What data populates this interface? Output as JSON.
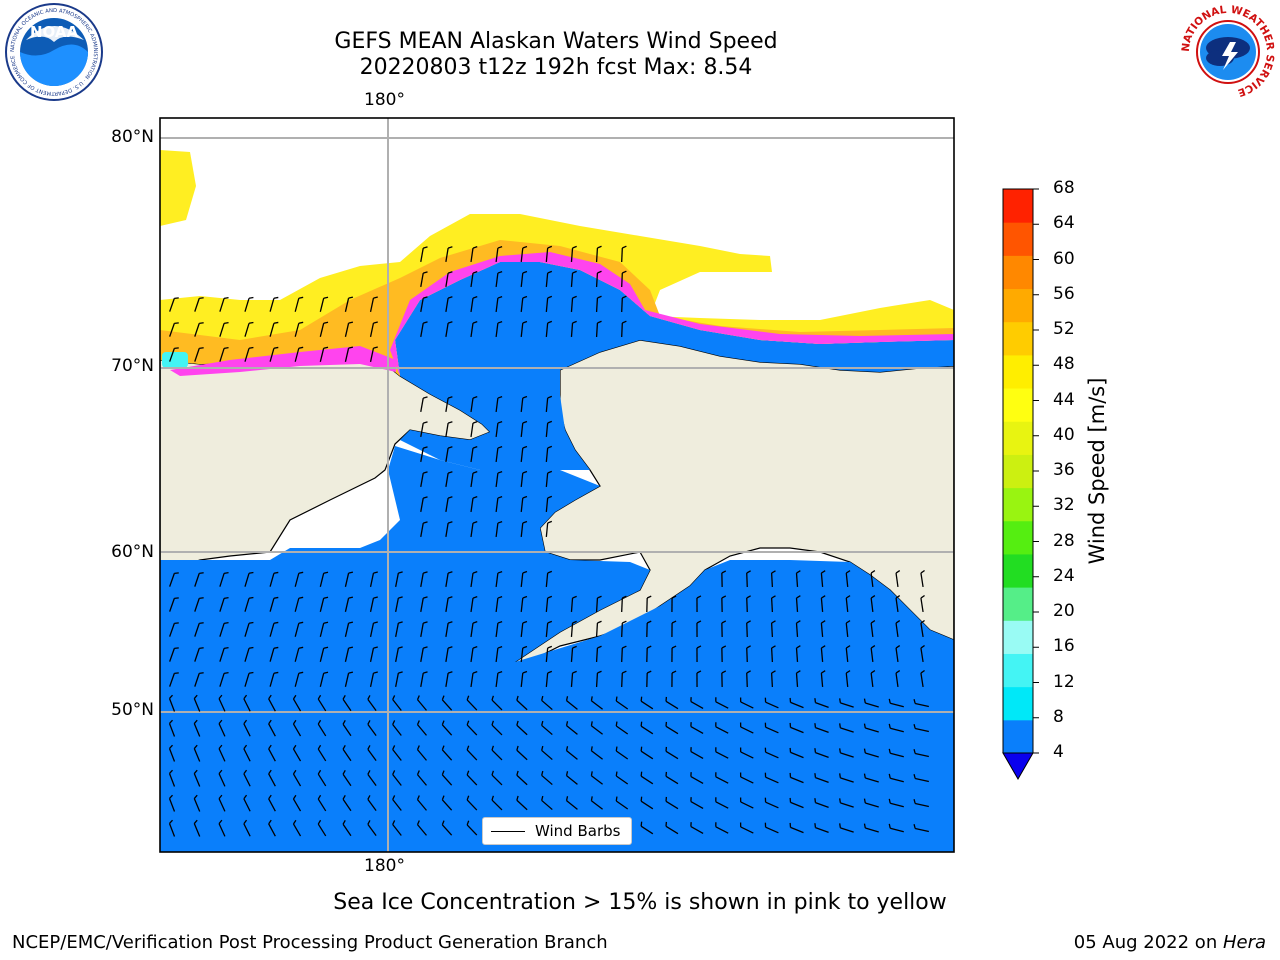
{
  "header": {
    "title_line1": "GEFS MEAN Alaskan Waters Wind Speed",
    "title_line2": "20220803 t12z 192h fcst   Max: 8.54"
  },
  "map": {
    "lon_label_top": "180°",
    "lon_label_bottom": "180°",
    "lat_labels": [
      "80°N",
      "70°N",
      "60°N",
      "50°N"
    ],
    "ocean_color": "#0a7ffb",
    "land_color": "#efeddd",
    "ice_colors": [
      "#ff44ee",
      "#ffbb22",
      "#ffee22"
    ],
    "legend_label": "Wind Barbs"
  },
  "colorbar": {
    "label": "Wind Speed [m/s]",
    "ticks": [
      "68",
      "64",
      "60",
      "56",
      "52",
      "48",
      "44",
      "40",
      "36",
      "32",
      "28",
      "24",
      "20",
      "16",
      "12",
      "8",
      "4"
    ],
    "colors": [
      "#0a7ffb",
      "#00e8f8",
      "#44f4f4",
      "#99fbf4",
      "#55ee88",
      "#22dd22",
      "#55ee11",
      "#99f411",
      "#ccf011",
      "#e8f411",
      "#ffff11",
      "#ffee00",
      "#ffcc00",
      "#ffaa00",
      "#ff8800",
      "#ff5500",
      "#ff2200",
      "#ff0000"
    ],
    "under_color": "#0a00ee"
  },
  "caption": "Sea Ice Concentration > 15% is shown in pink to yellow",
  "footer": {
    "left": "NCEP/EMC/Verification Post Processing Product Generation Branch",
    "right_date": "05 Aug 2022 on ",
    "right_host": "Hera"
  },
  "logos": {
    "noaa_text": "NOAA",
    "noaa_ring": "NATIONAL OCEANIC AND ATMOSPHERIC ADMINISTRATION · U.S. DEPARTMENT OF COMMERCE",
    "nws_ring": "NATIONAL WEATHER SERVICE"
  }
}
